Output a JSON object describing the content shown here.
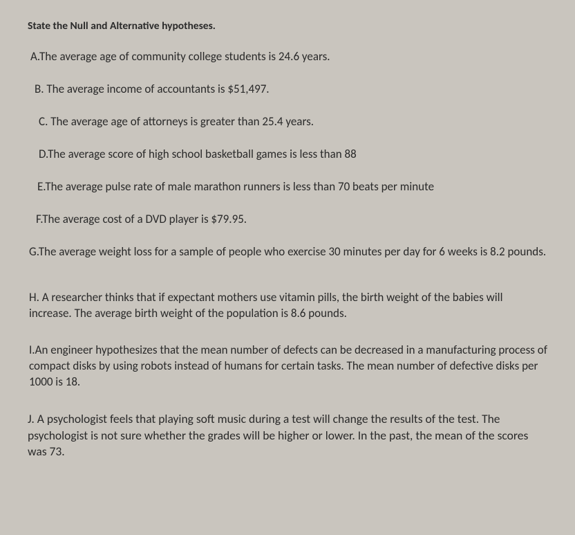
{
  "title": "State the Null and Alternative hypotheses.",
  "items": {
    "a": "A.The average age of community college students is 24.6 years.",
    "b": "B. The average income of accountants is $51,497.",
    "c": "C. The average age of attorneys is greater than 25.4 years.",
    "d": "D.The average score of high school basketball games is less than 88",
    "e": "E.The average pulse rate of male marathon runners is less than 70 beats per minute",
    "f": "F.The average cost of a DVD player is $79.95.",
    "g": "G.The average weight loss for a sample of people who exercise 30 minutes per day for 6 weeks is 8.2 pounds.",
    "h": "H. A researcher thinks that if expectant mothers use vitamin pills, the birth weight of the babies will increase. The average birth weight of the population is 8.6 pounds.",
    "i": "I.An engineer hypothesizes that the mean number of defects can be decreased in a manufacturing process of compact disks by using robots instead of humans for certain tasks. The mean number of defective disks per 1000 is 18.",
    "j": "J. A psychologist feels that playing soft music during a test will change the results of the test. The psychologist is not sure whether the grades will be higher or lower. In the past, the mean of the scores was 73."
  },
  "colors": {
    "background": "#c9c5be",
    "text": "#2a2a2a"
  },
  "typography": {
    "title_fontsize": 15.5,
    "title_weight": "bold",
    "body_fontsize": 17,
    "font_family": "Calibri, Arial, sans-serif"
  }
}
